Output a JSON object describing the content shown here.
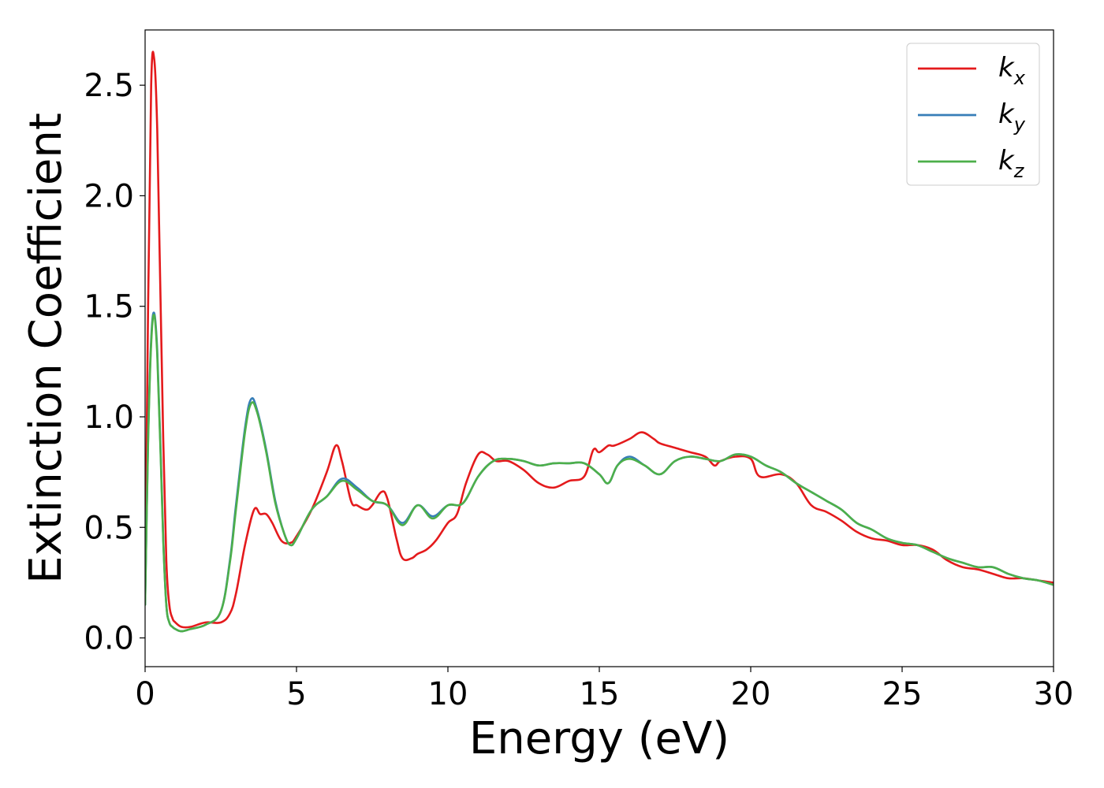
{
  "chart_data": {
    "type": "line",
    "xlabel": "Energy (eV)",
    "ylabel": "Extinction Coefficient",
    "xlim": [
      0,
      30
    ],
    "ylim": [
      -0.13,
      2.75
    ],
    "xticks": [
      0,
      5,
      10,
      15,
      20,
      25,
      30
    ],
    "xtick_labels": [
      "0",
      "5",
      "10",
      "15",
      "20",
      "25",
      "30"
    ],
    "yticks": [
      0.0,
      0.5,
      1.0,
      1.5,
      2.0,
      2.5
    ],
    "ytick_labels": [
      "0.0",
      "0.5",
      "1.0",
      "1.5",
      "2.0",
      "2.5"
    ],
    "grid": false,
    "legend_position": "top-right",
    "series": [
      {
        "name": "k",
        "subscript": "x",
        "color": "#e41a1c",
        "x": [
          0,
          0.1,
          0.2,
          0.3,
          0.4,
          0.5,
          0.6,
          0.7,
          0.8,
          0.9,
          1.0,
          1.2,
          1.5,
          2.0,
          2.5,
          2.8,
          3.0,
          3.3,
          3.6,
          3.8,
          4.0,
          4.2,
          4.5,
          4.8,
          5.0,
          5.5,
          6.0,
          6.3,
          6.5,
          6.8,
          7.0,
          7.3,
          7.5,
          7.8,
          8.0,
          8.3,
          8.5,
          8.8,
          9.0,
          9.3,
          9.6,
          10.0,
          10.3,
          10.6,
          11.0,
          11.3,
          11.6,
          12.0,
          12.5,
          13.0,
          13.5,
          14.0,
          14.5,
          14.8,
          15.0,
          15.3,
          15.5,
          16.0,
          16.4,
          16.8,
          17.0,
          17.5,
          18.0,
          18.5,
          18.8,
          19.0,
          19.5,
          20.0,
          20.3,
          21.0,
          21.5,
          22.0,
          22.5,
          23.0,
          23.5,
          24.0,
          24.5,
          25.0,
          25.5,
          26.0,
          26.5,
          27.0,
          27.5,
          28.0,
          28.5,
          29.0,
          29.5,
          30.0
        ],
        "y": [
          0.2,
          1.5,
          2.5,
          2.62,
          2.3,
          1.6,
          0.9,
          0.35,
          0.15,
          0.09,
          0.07,
          0.05,
          0.05,
          0.07,
          0.07,
          0.11,
          0.2,
          0.42,
          0.58,
          0.56,
          0.56,
          0.52,
          0.44,
          0.43,
          0.46,
          0.58,
          0.75,
          0.87,
          0.8,
          0.62,
          0.6,
          0.58,
          0.6,
          0.66,
          0.63,
          0.45,
          0.36,
          0.36,
          0.38,
          0.4,
          0.44,
          0.52,
          0.56,
          0.7,
          0.83,
          0.83,
          0.8,
          0.8,
          0.76,
          0.7,
          0.68,
          0.71,
          0.73,
          0.85,
          0.84,
          0.87,
          0.87,
          0.9,
          0.93,
          0.9,
          0.88,
          0.86,
          0.84,
          0.82,
          0.78,
          0.8,
          0.82,
          0.81,
          0.73,
          0.74,
          0.7,
          0.6,
          0.57,
          0.53,
          0.48,
          0.45,
          0.44,
          0.42,
          0.42,
          0.4,
          0.35,
          0.32,
          0.31,
          0.29,
          0.27,
          0.27,
          0.26,
          0.25
        ]
      },
      {
        "name": "k",
        "subscript": "y",
        "color": "#377eb8",
        "x": [
          0,
          0.1,
          0.2,
          0.3,
          0.4,
          0.5,
          0.6,
          0.7,
          0.8,
          0.9,
          1.0,
          1.2,
          1.5,
          2.0,
          2.5,
          2.8,
          3.0,
          3.3,
          3.5,
          3.7,
          4.0,
          4.3,
          4.6,
          4.8,
          5.0,
          5.5,
          6.0,
          6.5,
          7.0,
          7.5,
          8.0,
          8.5,
          9.0,
          9.5,
          10.0,
          10.5,
          11.0,
          11.5,
          12.0,
          12.5,
          13.0,
          13.5,
          14.0,
          14.5,
          15.0,
          15.3,
          15.6,
          16.0,
          16.5,
          17.0,
          17.5,
          18.0,
          18.5,
          19.0,
          19.5,
          20.0,
          20.5,
          21.0,
          21.5,
          22.0,
          22.5,
          23.0,
          23.5,
          24.0,
          24.5,
          25.0,
          25.5,
          26.0,
          26.5,
          27.0,
          27.5,
          28.0,
          28.5,
          29.0,
          29.5,
          30.0
        ],
        "y": [
          0.15,
          0.9,
          1.35,
          1.47,
          1.3,
          0.9,
          0.45,
          0.15,
          0.07,
          0.05,
          0.04,
          0.03,
          0.04,
          0.06,
          0.12,
          0.35,
          0.6,
          0.95,
          1.08,
          1.03,
          0.85,
          0.62,
          0.47,
          0.42,
          0.45,
          0.58,
          0.64,
          0.72,
          0.68,
          0.62,
          0.6,
          0.52,
          0.6,
          0.55,
          0.6,
          0.61,
          0.73,
          0.8,
          0.81,
          0.8,
          0.78,
          0.79,
          0.79,
          0.79,
          0.74,
          0.7,
          0.78,
          0.82,
          0.78,
          0.74,
          0.8,
          0.82,
          0.81,
          0.8,
          0.83,
          0.82,
          0.78,
          0.75,
          0.7,
          0.66,
          0.62,
          0.58,
          0.52,
          0.49,
          0.45,
          0.43,
          0.42,
          0.39,
          0.36,
          0.34,
          0.32,
          0.32,
          0.29,
          0.27,
          0.26,
          0.24
        ]
      },
      {
        "name": "k",
        "subscript": "z",
        "color": "#4daf4a",
        "x": [
          0,
          0.1,
          0.2,
          0.3,
          0.4,
          0.5,
          0.6,
          0.7,
          0.8,
          0.9,
          1.0,
          1.2,
          1.5,
          2.0,
          2.5,
          2.8,
          3.0,
          3.3,
          3.5,
          3.7,
          4.0,
          4.3,
          4.6,
          4.8,
          5.0,
          5.5,
          6.0,
          6.5,
          7.0,
          7.5,
          8.0,
          8.5,
          9.0,
          9.5,
          10.0,
          10.5,
          11.0,
          11.5,
          12.0,
          12.5,
          13.0,
          13.5,
          14.0,
          14.5,
          15.0,
          15.3,
          15.6,
          16.0,
          16.5,
          17.0,
          17.5,
          18.0,
          18.5,
          19.0,
          19.5,
          20.0,
          20.5,
          21.0,
          21.5,
          22.0,
          22.5,
          23.0,
          23.5,
          24.0,
          24.5,
          25.0,
          25.5,
          26.0,
          26.5,
          27.0,
          27.5,
          28.0,
          28.5,
          29.0,
          29.5,
          30.0
        ],
        "y": [
          0.15,
          0.88,
          1.33,
          1.46,
          1.28,
          0.88,
          0.44,
          0.15,
          0.07,
          0.05,
          0.04,
          0.03,
          0.04,
          0.06,
          0.12,
          0.34,
          0.58,
          0.93,
          1.06,
          1.02,
          0.84,
          0.61,
          0.47,
          0.42,
          0.45,
          0.58,
          0.64,
          0.71,
          0.67,
          0.62,
          0.6,
          0.51,
          0.6,
          0.54,
          0.6,
          0.61,
          0.73,
          0.8,
          0.81,
          0.8,
          0.78,
          0.79,
          0.79,
          0.79,
          0.74,
          0.7,
          0.78,
          0.81,
          0.78,
          0.74,
          0.8,
          0.82,
          0.81,
          0.8,
          0.83,
          0.82,
          0.78,
          0.75,
          0.7,
          0.66,
          0.62,
          0.58,
          0.52,
          0.49,
          0.45,
          0.43,
          0.42,
          0.39,
          0.36,
          0.34,
          0.32,
          0.32,
          0.29,
          0.27,
          0.26,
          0.24
        ]
      }
    ]
  }
}
